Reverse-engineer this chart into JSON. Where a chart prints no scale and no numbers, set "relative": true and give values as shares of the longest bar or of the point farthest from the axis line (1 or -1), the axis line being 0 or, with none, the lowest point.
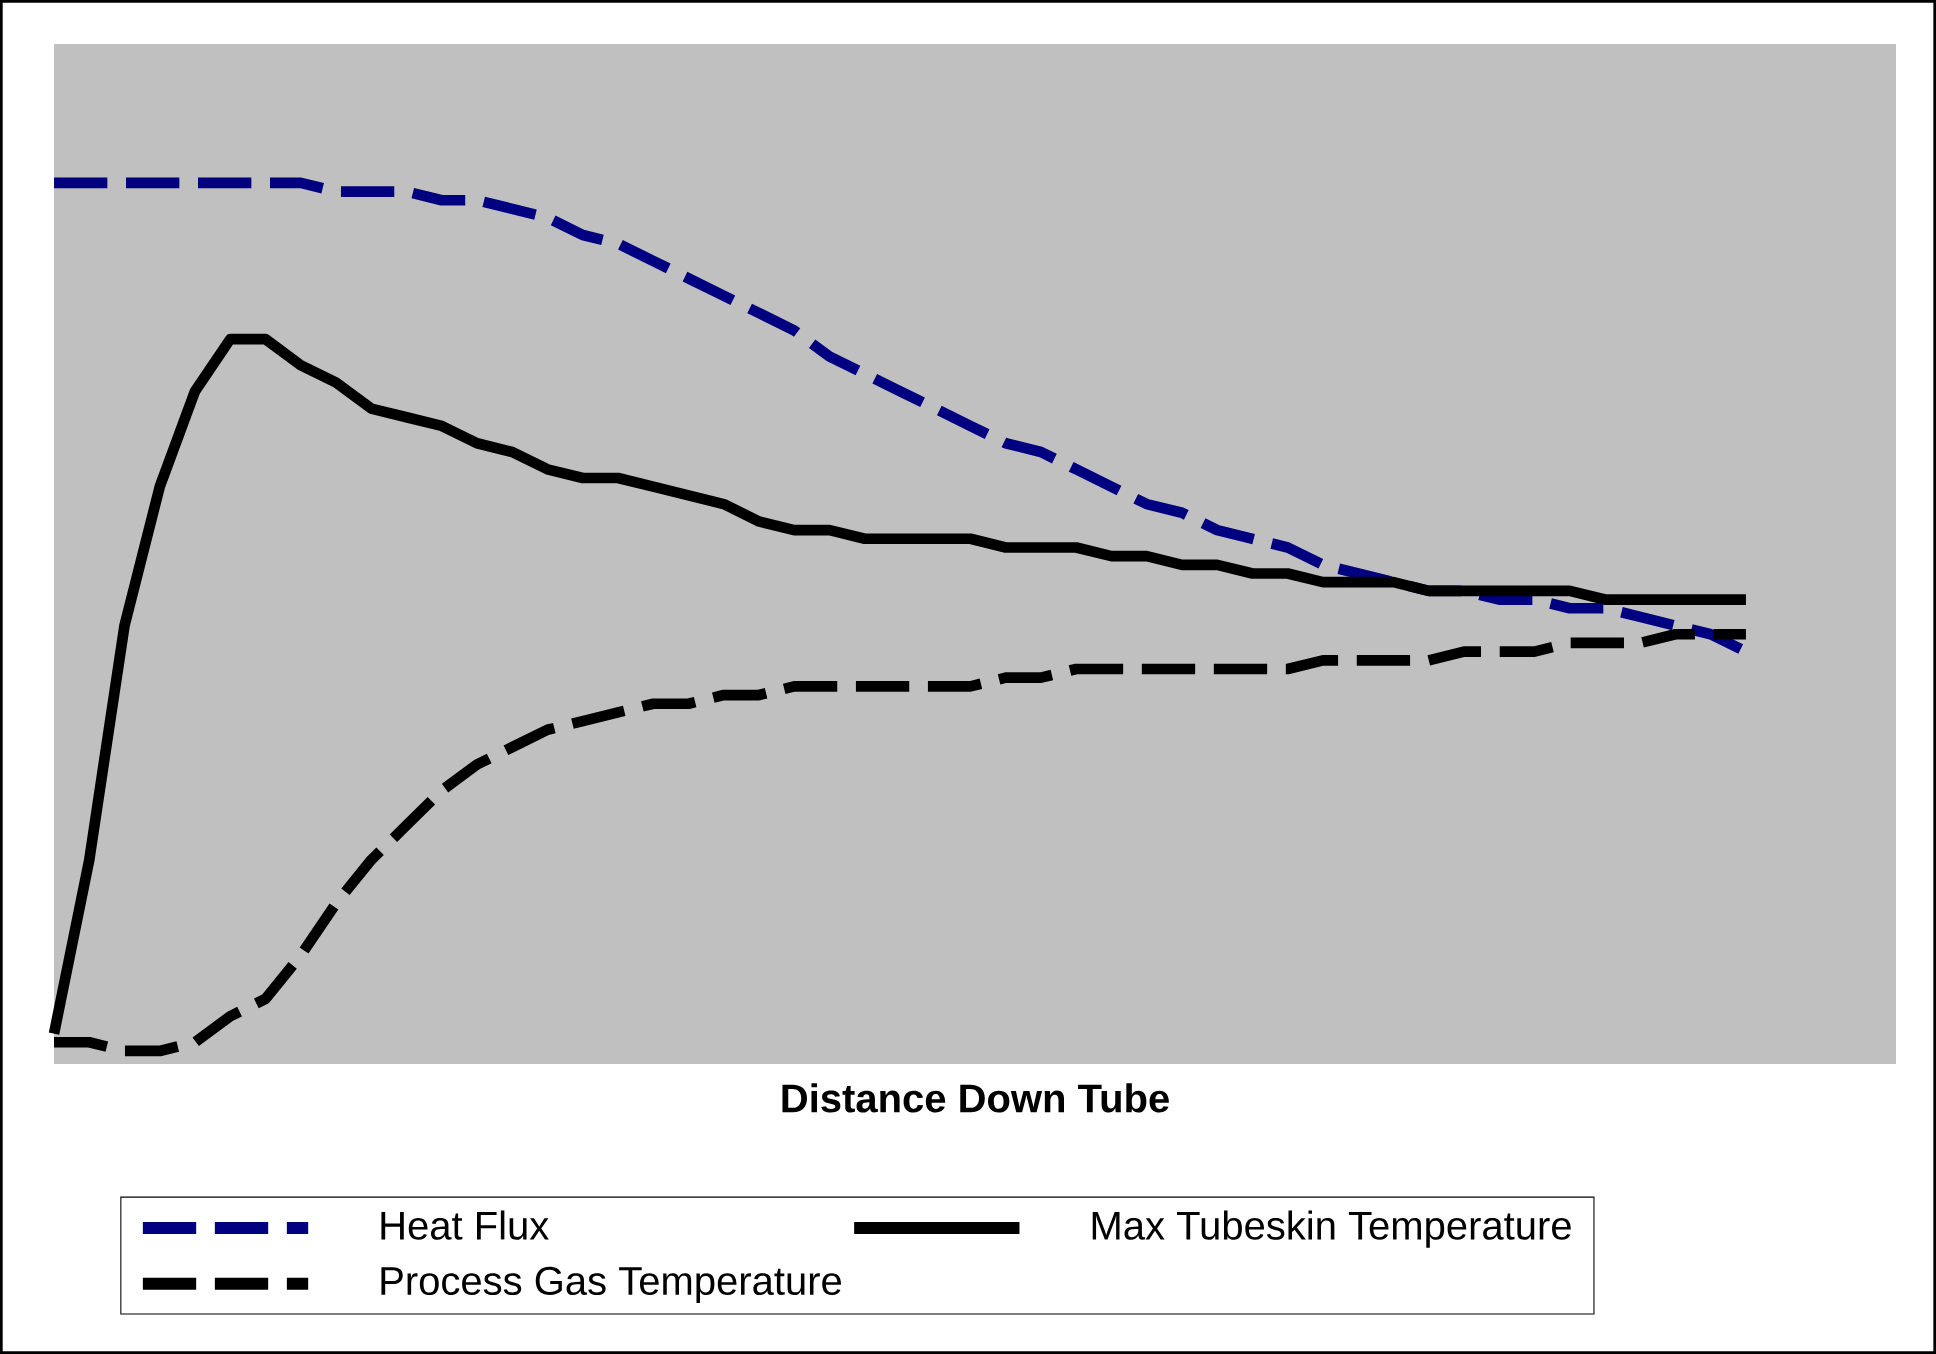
{
  "chart_data": {
    "type": "line",
    "xlabel": "Distance Down Tube",
    "relative": true,
    "legend": "bottom",
    "categories": [
      null,
      null,
      null,
      null,
      null,
      null,
      null,
      null,
      null,
      null,
      null,
      null,
      null,
      null,
      null,
      null,
      null,
      null,
      null,
      null,
      null,
      null,
      null,
      null,
      null,
      null,
      null,
      null,
      null,
      null,
      null,
      null,
      null,
      null,
      null,
      null,
      null,
      null,
      null,
      null,
      null,
      null,
      null,
      null,
      null,
      null,
      null,
      null,
      null
    ],
    "series": [
      {
        "name": "Heat Flux",
        "color": "#000080",
        "line_style": "dashed",
        "values": [
          1.0,
          1.0,
          1.0,
          1.0,
          1.0,
          1.0,
          1.0,
          1.0,
          0.99,
          0.99,
          0.99,
          0.98,
          0.98,
          0.97,
          0.96,
          0.94,
          0.93,
          0.91,
          0.89,
          0.87,
          0.85,
          0.83,
          0.8,
          0.78,
          0.76,
          0.74,
          0.72,
          0.7,
          0.69,
          0.67,
          0.65,
          0.63,
          0.62,
          0.6,
          0.59,
          0.58,
          0.56,
          0.55,
          0.54,
          0.53,
          0.53,
          0.52,
          0.52,
          0.51,
          0.51,
          0.5,
          0.49,
          0.48,
          0.46
        ]
      },
      {
        "name": "Max Tubeskin Temperature",
        "color": "#000000",
        "line_style": "solid",
        "values": [
          0.02,
          0.22,
          0.49,
          0.65,
          0.76,
          0.82,
          0.82,
          0.79,
          0.77,
          0.74,
          0.73,
          0.72,
          0.7,
          0.69,
          0.67,
          0.66,
          0.66,
          0.65,
          0.64,
          0.63,
          0.61,
          0.6,
          0.6,
          0.59,
          0.59,
          0.59,
          0.59,
          0.58,
          0.58,
          0.58,
          0.57,
          0.57,
          0.56,
          0.56,
          0.55,
          0.55,
          0.54,
          0.54,
          0.54,
          0.53,
          0.53,
          0.53,
          0.53,
          0.53,
          0.52,
          0.52,
          0.52,
          0.52,
          0.52
        ]
      },
      {
        "name": "Process Gas Temperature",
        "color": "#000000",
        "line_style": "dashed",
        "values": [
          0.01,
          0.01,
          0,
          0,
          0.01,
          0.04,
          0.06,
          0.11,
          0.17,
          0.22,
          0.26,
          0.3,
          0.33,
          0.35,
          0.37,
          0.38,
          0.39,
          0.4,
          0.4,
          0.41,
          0.41,
          0.42,
          0.42,
          0.42,
          0.42,
          0.42,
          0.42,
          0.43,
          0.43,
          0.44,
          0.44,
          0.44,
          0.44,
          0.44,
          0.44,
          0.44,
          0.45,
          0.45,
          0.45,
          0.45,
          0.46,
          0.46,
          0.46,
          0.47,
          0.47,
          0.47,
          0.48,
          0.48,
          0.48
        ]
      }
    ]
  }
}
